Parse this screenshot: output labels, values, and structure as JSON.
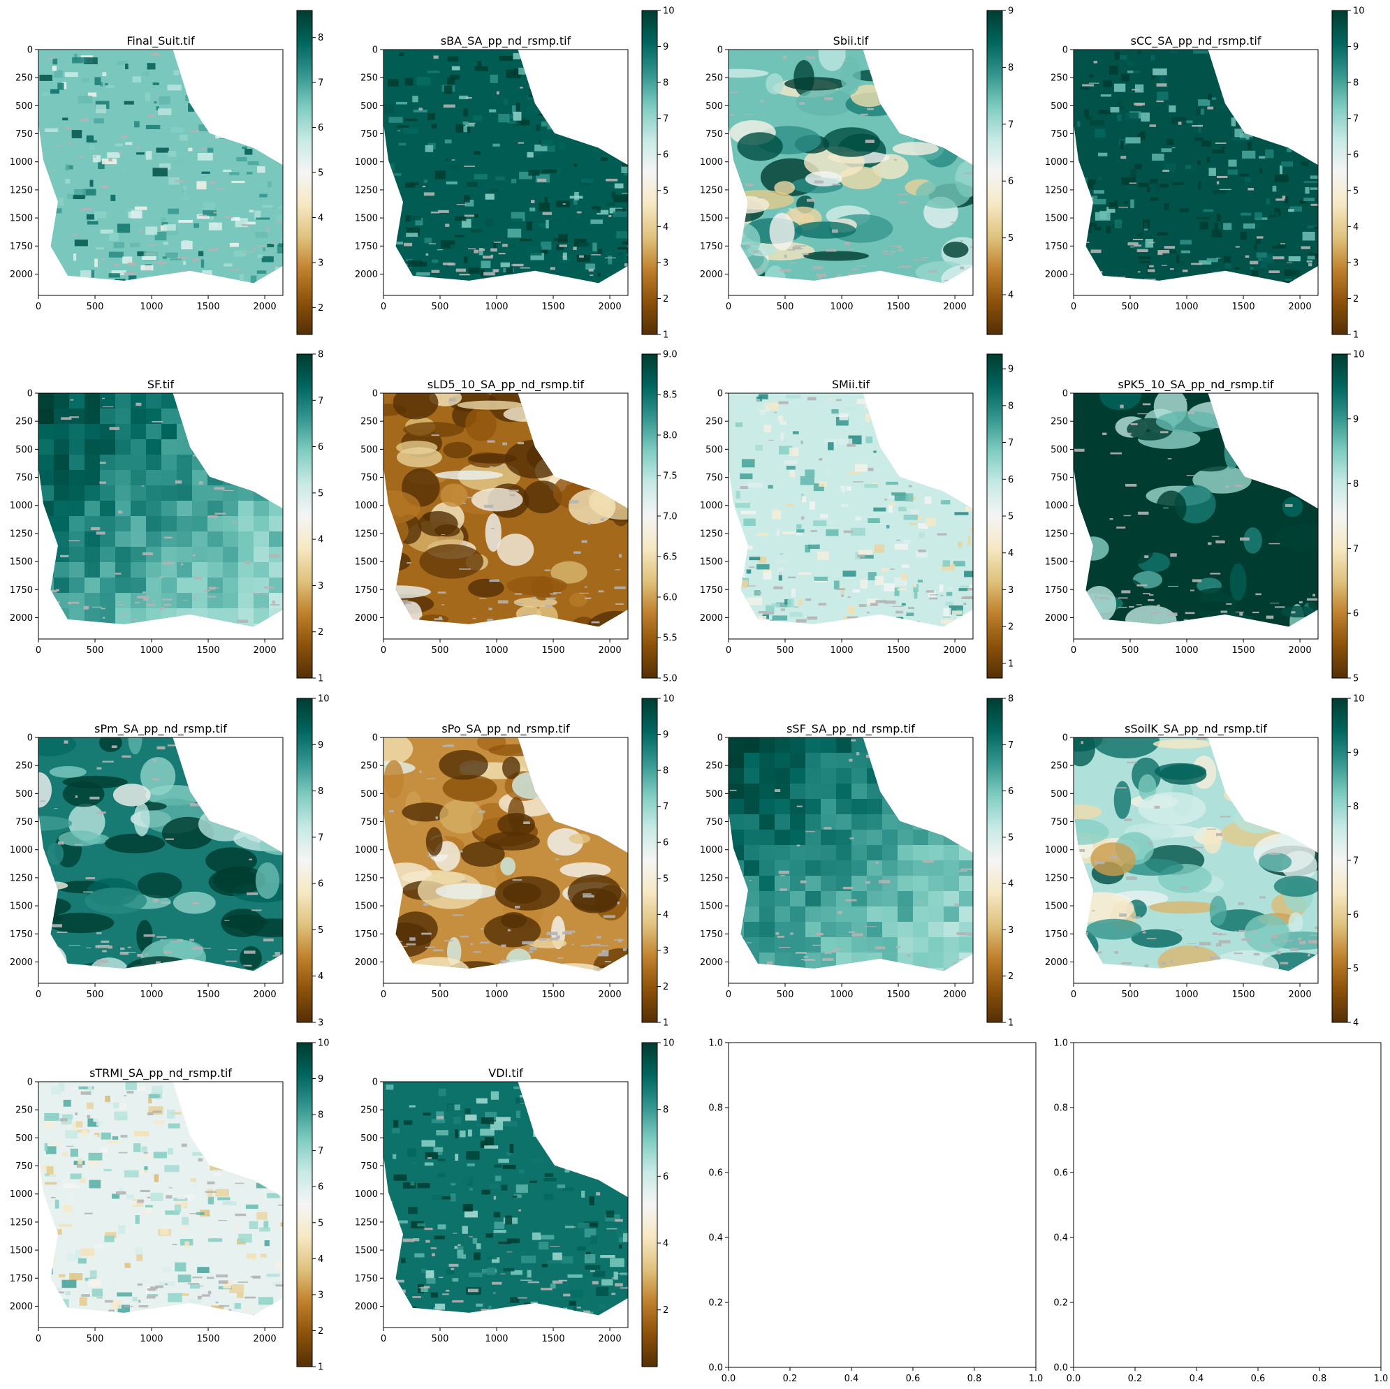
{
  "figure": {
    "colormap": "BrBG",
    "colormap_stops": [
      "#543005",
      "#8c510a",
      "#bf812d",
      "#dfc27d",
      "#f6e8c3",
      "#f5f5f5",
      "#c7eae5",
      "#80cdc1",
      "#35978f",
      "#01665e",
      "#003c30"
    ],
    "nodata_color": "#b4b4b4",
    "background": "#ffffff"
  },
  "chart_data": [
    {
      "type": "heatmap",
      "title": "Final_Suit.tif",
      "xticks": [
        "0",
        "500",
        "1000",
        "1500",
        "2000"
      ],
      "yticks": [
        "0",
        "250",
        "500",
        "750",
        "1000",
        "1250",
        "1500",
        "1750",
        "2000"
      ],
      "xlim": [
        0,
        2160
      ],
      "ylim": [
        2190,
        0
      ],
      "colorbar": {
        "min": 1.4,
        "max": 8.6,
        "ticks": [
          2,
          3,
          4,
          5,
          6,
          7,
          8
        ],
        "labels": [
          "2",
          "3",
          "4",
          "5",
          "6",
          "7",
          "8"
        ]
      },
      "style": "speckle",
      "dominant_value": 6.5
    },
    {
      "type": "heatmap",
      "title": "sBA_SA_pp_nd_rsmp.tif",
      "xticks": [
        "0",
        "500",
        "1000",
        "1500",
        "2000"
      ],
      "yticks": [
        "0",
        "250",
        "500",
        "750",
        "1000",
        "1250",
        "1500",
        "1750",
        "2000"
      ],
      "xlim": [
        0,
        2160
      ],
      "ylim": [
        2190,
        0
      ],
      "colorbar": {
        "min": 1,
        "max": 10,
        "ticks": [
          1,
          2,
          3,
          4,
          5,
          6,
          7,
          8,
          9,
          10
        ],
        "labels": [
          "1",
          "2",
          "3",
          "4",
          "5",
          "6",
          "7",
          "8",
          "9",
          "10"
        ]
      },
      "style": "speckle",
      "dominant_value": 9.3
    },
    {
      "type": "heatmap",
      "title": "Sbii.tif",
      "xticks": [
        "0",
        "500",
        "1000",
        "1500",
        "2000"
      ],
      "yticks": [
        "0",
        "250",
        "500",
        "750",
        "1000",
        "1250",
        "1500",
        "1750",
        "2000"
      ],
      "xlim": [
        0,
        2160
      ],
      "ylim": [
        2190,
        0
      ],
      "colorbar": {
        "min": 3.3,
        "max": 9,
        "ticks": [
          4,
          5,
          6,
          7,
          8,
          9
        ],
        "labels": [
          "4",
          "5",
          "6",
          "7",
          "8",
          "9"
        ]
      },
      "style": "zones",
      "dominant_value": 7.4
    },
    {
      "type": "heatmap",
      "title": "sCC_SA_pp_nd_rsmp.tif",
      "xticks": [
        "0",
        "500",
        "1000",
        "1500",
        "2000"
      ],
      "yticks": [
        "0",
        "250",
        "500",
        "750",
        "1000",
        "1250",
        "1500",
        "1750",
        "2000"
      ],
      "xlim": [
        0,
        2160
      ],
      "ylim": [
        2190,
        0
      ],
      "colorbar": {
        "min": 1,
        "max": 10,
        "ticks": [
          1,
          2,
          3,
          4,
          5,
          6,
          7,
          8,
          9,
          10
        ],
        "labels": [
          "1",
          "2",
          "3",
          "4",
          "5",
          "6",
          "7",
          "8",
          "9",
          "10"
        ]
      },
      "style": "speckle",
      "dominant_value": 9.5
    },
    {
      "type": "heatmap",
      "title": "SF.tif",
      "xticks": [
        "0",
        "500",
        "1000",
        "1500",
        "2000"
      ],
      "yticks": [
        "0",
        "250",
        "500",
        "750",
        "1000",
        "1250",
        "1500",
        "1750",
        "2000"
      ],
      "xlim": [
        0,
        2160
      ],
      "ylim": [
        2190,
        0
      ],
      "colorbar": {
        "min": 1,
        "max": 8,
        "ticks": [
          1,
          2,
          3,
          4,
          5,
          6,
          7,
          8
        ],
        "labels": [
          "1",
          "2",
          "3",
          "4",
          "5",
          "6",
          "7",
          "8"
        ]
      },
      "style": "blocks",
      "dominant_value": 6.5
    },
    {
      "type": "heatmap",
      "title": "sLD5_10_SA_pp_nd_rsmp.tif",
      "xticks": [
        "0",
        "500",
        "1000",
        "1500",
        "2000"
      ],
      "yticks": [
        "0",
        "250",
        "500",
        "750",
        "1000",
        "1250",
        "1500",
        "1750",
        "2000"
      ],
      "xlim": [
        0,
        2160
      ],
      "ylim": [
        2190,
        0
      ],
      "colorbar": {
        "min": 5,
        "max": 9,
        "ticks": [
          5,
          5.5,
          6,
          6.5,
          7,
          7.5,
          8,
          8.5,
          9
        ],
        "labels": [
          "5.0",
          "5.5",
          "6.0",
          "6.5",
          "7.0",
          "7.5",
          "8.0",
          "8.5",
          "9.0"
        ]
      },
      "style": "zones",
      "dominant_value": 5.6
    },
    {
      "type": "heatmap",
      "title": "SMii.tif",
      "xticks": [
        "0",
        "500",
        "1000",
        "1500",
        "2000"
      ],
      "yticks": [
        "0",
        "250",
        "500",
        "750",
        "1000",
        "1250",
        "1500",
        "1750",
        "2000"
      ],
      "xlim": [
        0,
        2160
      ],
      "ylim": [
        2190,
        0
      ],
      "colorbar": {
        "min": 0.6,
        "max": 9.4,
        "ticks": [
          1,
          2,
          3,
          4,
          5,
          6,
          7,
          8,
          9
        ],
        "labels": [
          "1",
          "2",
          "3",
          "4",
          "5",
          "6",
          "7",
          "8",
          "9"
        ]
      },
      "style": "speckle",
      "dominant_value": 5.8
    },
    {
      "type": "heatmap",
      "title": "sPK5_10_SA_pp_nd_rsmp.tif",
      "xticks": [
        "0",
        "500",
        "1000",
        "1500",
        "2000"
      ],
      "yticks": [
        "0",
        "250",
        "500",
        "750",
        "1000",
        "1250",
        "1500",
        "1750",
        "2000"
      ],
      "xlim": [
        0,
        2160
      ],
      "ylim": [
        2190,
        0
      ],
      "colorbar": {
        "min": 5,
        "max": 10,
        "ticks": [
          5,
          6,
          7,
          8,
          9,
          10
        ],
        "labels": [
          "5",
          "6",
          "7",
          "8",
          "9",
          "10"
        ]
      },
      "style": "zones",
      "dominant_value": 10
    },
    {
      "type": "heatmap",
      "title": "sPm_SA_pp_nd_rsmp.tif",
      "xticks": [
        "0",
        "500",
        "1000",
        "1500",
        "2000"
      ],
      "yticks": [
        "0",
        "250",
        "500",
        "750",
        "1000",
        "1250",
        "1500",
        "1750",
        "2000"
      ],
      "xlim": [
        0,
        2160
      ],
      "ylim": [
        2190,
        0
      ],
      "colorbar": {
        "min": 3,
        "max": 10,
        "ticks": [
          3,
          4,
          5,
          6,
          7,
          8,
          9,
          10
        ],
        "labels": [
          "3",
          "4",
          "5",
          "6",
          "7",
          "8",
          "9",
          "10"
        ]
      },
      "style": "zones",
      "dominant_value": 9
    },
    {
      "type": "heatmap",
      "title": "sPo_SA_pp_nd_rsmp.tif",
      "xticks": [
        "0",
        "500",
        "1000",
        "1500",
        "2000"
      ],
      "yticks": [
        "0",
        "250",
        "500",
        "750",
        "1000",
        "1250",
        "1500",
        "1750",
        "2000"
      ],
      "xlim": [
        0,
        2160
      ],
      "ylim": [
        2190,
        0
      ],
      "colorbar": {
        "min": 1,
        "max": 10,
        "ticks": [
          1,
          2,
          3,
          4,
          5,
          6,
          7,
          8,
          9,
          10
        ],
        "labels": [
          "1",
          "2",
          "3",
          "4",
          "5",
          "6",
          "7",
          "8",
          "9",
          "10"
        ]
      },
      "style": "zones",
      "dominant_value": 3
    },
    {
      "type": "heatmap",
      "title": "sSF_SA_pp_nd_rsmp.tif",
      "xticks": [
        "0",
        "500",
        "1000",
        "1500",
        "2000"
      ],
      "yticks": [
        "0",
        "250",
        "500",
        "750",
        "1000",
        "1250",
        "1500",
        "1750",
        "2000"
      ],
      "xlim": [
        0,
        2160
      ],
      "ylim": [
        2190,
        0
      ],
      "colorbar": {
        "min": 1,
        "max": 8,
        "ticks": [
          1,
          2,
          3,
          4,
          5,
          6,
          7,
          8
        ],
        "labels": [
          "1",
          "2",
          "3",
          "4",
          "5",
          "6",
          "7",
          "8"
        ]
      },
      "style": "blocks",
      "dominant_value": 6.5
    },
    {
      "type": "heatmap",
      "title": "sSoilK_SA_pp_nd_rsmp.tif",
      "xticks": [
        "0",
        "500",
        "1000",
        "1500",
        "2000"
      ],
      "yticks": [
        "0",
        "250",
        "500",
        "750",
        "1000",
        "1250",
        "1500",
        "1750",
        "2000"
      ],
      "xlim": [
        0,
        2160
      ],
      "ylim": [
        2190,
        0
      ],
      "colorbar": {
        "min": 4,
        "max": 10,
        "ticks": [
          4,
          5,
          6,
          7,
          8,
          9,
          10
        ],
        "labels": [
          "4",
          "5",
          "6",
          "7",
          "8",
          "9",
          "10"
        ]
      },
      "style": "zones",
      "dominant_value": 7.8
    },
    {
      "type": "heatmap",
      "title": "sTRMI_SA_pp_nd_rsmp.tif",
      "xticks": [
        "0",
        "500",
        "1000",
        "1500",
        "2000"
      ],
      "yticks": [
        "0",
        "250",
        "500",
        "750",
        "1000",
        "1250",
        "1500",
        "1750",
        "2000"
      ],
      "xlim": [
        0,
        2160
      ],
      "ylim": [
        2190,
        0
      ],
      "colorbar": {
        "min": 1,
        "max": 10,
        "ticks": [
          1,
          2,
          3,
          4,
          5,
          6,
          7,
          8,
          9,
          10
        ],
        "labels": [
          "1",
          "2",
          "3",
          "4",
          "5",
          "6",
          "7",
          "8",
          "9",
          "10"
        ]
      },
      "style": "speckle",
      "dominant_value": 5.8
    },
    {
      "type": "heatmap",
      "title": "VDI.tif",
      "xticks": [
        "0",
        "500",
        "1000",
        "1500",
        "2000"
      ],
      "yticks": [
        "0",
        "250",
        "500",
        "750",
        "1000",
        "1250",
        "1500",
        "1750",
        "2000"
      ],
      "xlim": [
        0,
        2160
      ],
      "ylim": [
        2190,
        0
      ],
      "colorbar": {
        "min": 0.3,
        "max": 10,
        "ticks": [
          2,
          4,
          6,
          8,
          10
        ],
        "labels": [
          "2",
          "4",
          "6",
          "8",
          "10"
        ]
      },
      "style": "speckle",
      "dominant_value": 8.8
    },
    {
      "type": "empty",
      "title": "",
      "xticks": [
        "0.0",
        "0.2",
        "0.4",
        "0.6",
        "0.8",
        "1.0"
      ],
      "yticks": [
        "0.0",
        "0.2",
        "0.4",
        "0.6",
        "0.8",
        "1.0"
      ],
      "xlim": [
        0,
        1
      ],
      "ylim": [
        0,
        1
      ]
    },
    {
      "type": "empty",
      "title": "",
      "xticks": [
        "0.0",
        "0.2",
        "0.4",
        "0.6",
        "0.8",
        "1.0"
      ],
      "yticks": [
        "0.0",
        "0.2",
        "0.4",
        "0.6",
        "0.8",
        "1.0"
      ],
      "xlim": [
        0,
        1
      ],
      "ylim": [
        0,
        1
      ]
    }
  ]
}
